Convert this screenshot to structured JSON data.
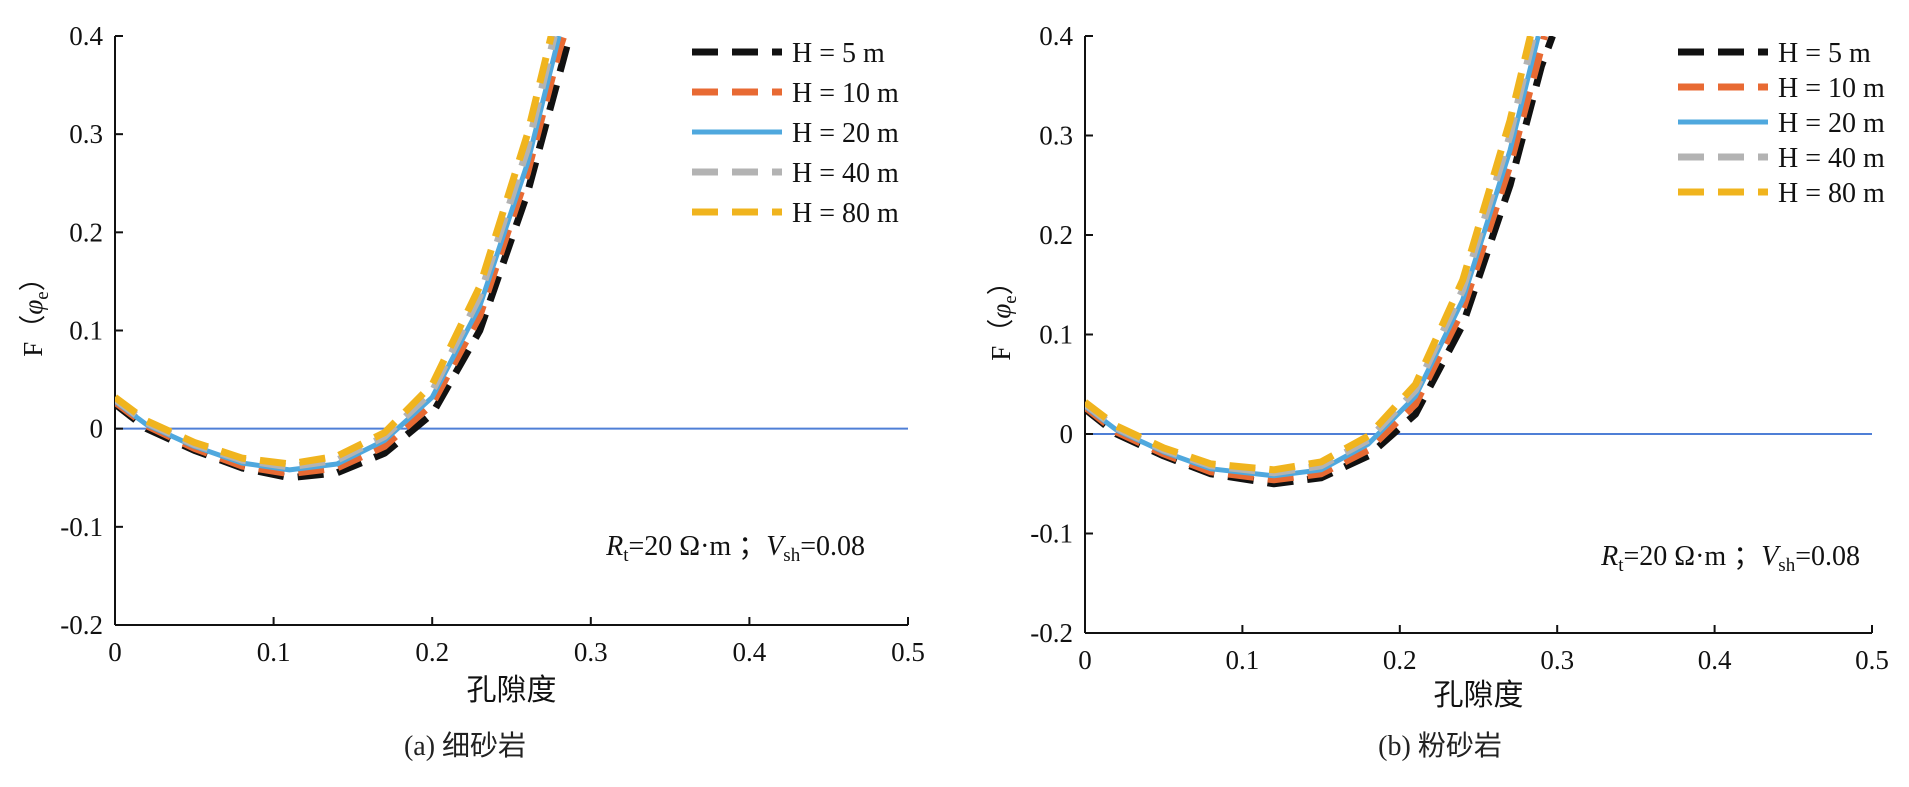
{
  "chart_data": [
    {
      "type": "line",
      "caption": "(a) 细砂岩",
      "xlabel": "孔隙度",
      "ylabel_main": "F（",
      "ylabel_sym": "φ",
      "ylabel_sub": "e",
      "ylabel_close": "）",
      "xlim": [
        0,
        0.5
      ],
      "ylim": [
        -0.2,
        0.4
      ],
      "xticks": [
        "0",
        "0.1",
        "0.2",
        "0.3",
        "0.4",
        "0.5"
      ],
      "yticks": [
        "-0.2",
        "-0.1",
        "0",
        "0.1",
        "0.2",
        "0.3",
        "0.4"
      ],
      "annotation": {
        "rt": "R",
        "rt_sub": "t",
        "rt_val": "=20 Ω·m ；",
        "vsh": "V",
        "vsh_sub": "sh",
        "vsh_val": "=0.08"
      },
      "legend_position": "top-right",
      "reference_line": {
        "y": 0,
        "color": "#4f7fd6"
      },
      "series": [
        {
          "name": "H = 5 m",
          "color": "#111111",
          "dash": true,
          "x": [
            0,
            0.02,
            0.05,
            0.08,
            0.11,
            0.14,
            0.17,
            0.2,
            0.23,
            0.26,
            0.28,
            0.285
          ],
          "y": [
            0.025,
            0.0,
            -0.022,
            -0.04,
            -0.05,
            -0.045,
            -0.025,
            0.015,
            0.1,
            0.24,
            0.36,
            0.39
          ]
        },
        {
          "name": "H = 10 m",
          "color": "#e86a33",
          "dash": true,
          "x": [
            0,
            0.02,
            0.05,
            0.08,
            0.11,
            0.14,
            0.17,
            0.2,
            0.23,
            0.26,
            0.28,
            0.283
          ],
          "y": [
            0.027,
            0.003,
            -0.02,
            -0.038,
            -0.046,
            -0.04,
            -0.018,
            0.025,
            0.115,
            0.26,
            0.385,
            0.4
          ]
        },
        {
          "name": "H = 20 m",
          "color": "#4fa8de",
          "dash": false,
          "x": [
            0,
            0.02,
            0.05,
            0.08,
            0.11,
            0.14,
            0.17,
            0.2,
            0.23,
            0.26,
            0.28
          ],
          "y": [
            0.028,
            0.004,
            -0.018,
            -0.035,
            -0.042,
            -0.036,
            -0.012,
            0.032,
            0.125,
            0.27,
            0.4
          ]
        },
        {
          "name": "H = 40 m",
          "color": "#b3b3b3",
          "dash": true,
          "x": [
            0,
            0.02,
            0.05,
            0.08,
            0.11,
            0.14,
            0.17,
            0.2,
            0.23,
            0.26,
            0.277
          ],
          "y": [
            0.03,
            0.006,
            -0.016,
            -0.032,
            -0.039,
            -0.032,
            -0.008,
            0.038,
            0.135,
            0.285,
            0.4
          ]
        },
        {
          "name": "H = 80 m",
          "color": "#f0b41e",
          "dash": true,
          "x": [
            0,
            0.02,
            0.05,
            0.08,
            0.11,
            0.14,
            0.17,
            0.2,
            0.23,
            0.26,
            0.275
          ],
          "y": [
            0.032,
            0.008,
            -0.014,
            -0.03,
            -0.036,
            -0.028,
            -0.004,
            0.045,
            0.145,
            0.3,
            0.4
          ]
        }
      ]
    },
    {
      "type": "line",
      "caption": "(b) 粉砂岩",
      "xlabel": "孔隙度",
      "ylabel_main": "F（",
      "ylabel_sym": "φ",
      "ylabel_sub": "e",
      "ylabel_close": "）",
      "xlim": [
        0,
        0.5
      ],
      "ylim": [
        -0.2,
        0.4
      ],
      "xticks": [
        "0",
        "0.1",
        "0.2",
        "0.3",
        "0.4",
        "0.5"
      ],
      "yticks": [
        "-0.2",
        "-0.1",
        "0",
        "0.1",
        "0.2",
        "0.3",
        "0.4"
      ],
      "annotation": {
        "rt": "R",
        "rt_sub": "t",
        "rt_val": "=20 Ω·m ；",
        "vsh": "V",
        "vsh_sub": "sh",
        "vsh_val": "=0.08"
      },
      "legend_position": "top-right",
      "reference_line": {
        "y": 0,
        "color": "#4f7fd6"
      },
      "series": [
        {
          "name": "H = 5 m",
          "color": "#111111",
          "dash": true,
          "x": [
            0,
            0.02,
            0.05,
            0.08,
            0.12,
            0.15,
            0.18,
            0.21,
            0.24,
            0.27,
            0.29,
            0.297
          ],
          "y": [
            0.025,
            0.0,
            -0.022,
            -0.04,
            -0.05,
            -0.044,
            -0.022,
            0.02,
            0.11,
            0.25,
            0.37,
            0.4
          ]
        },
        {
          "name": "H = 10 m",
          "color": "#e86a33",
          "dash": true,
          "x": [
            0,
            0.02,
            0.05,
            0.08,
            0.12,
            0.15,
            0.18,
            0.21,
            0.24,
            0.27,
            0.292
          ],
          "y": [
            0.027,
            0.002,
            -0.02,
            -0.038,
            -0.046,
            -0.04,
            -0.016,
            0.03,
            0.125,
            0.27,
            0.4
          ]
        },
        {
          "name": "H = 20 m",
          "color": "#4fa8de",
          "dash": false,
          "x": [
            0,
            0.02,
            0.05,
            0.08,
            0.12,
            0.15,
            0.18,
            0.21,
            0.24,
            0.27,
            0.288
          ],
          "y": [
            0.028,
            0.004,
            -0.018,
            -0.035,
            -0.042,
            -0.036,
            -0.01,
            0.038,
            0.135,
            0.285,
            0.4
          ]
        },
        {
          "name": "H = 40 m",
          "color": "#b3b3b3",
          "dash": true,
          "x": [
            0,
            0.02,
            0.05,
            0.08,
            0.12,
            0.15,
            0.18,
            0.21,
            0.24,
            0.27,
            0.285
          ],
          "y": [
            0.03,
            0.006,
            -0.016,
            -0.032,
            -0.039,
            -0.032,
            -0.006,
            0.044,
            0.145,
            0.3,
            0.4
          ]
        },
        {
          "name": "H = 80 m",
          "color": "#f0b41e",
          "dash": true,
          "x": [
            0,
            0.02,
            0.05,
            0.08,
            0.12,
            0.15,
            0.18,
            0.21,
            0.24,
            0.27,
            0.283
          ],
          "y": [
            0.032,
            0.008,
            -0.014,
            -0.03,
            -0.036,
            -0.028,
            -0.002,
            0.05,
            0.155,
            0.315,
            0.4
          ]
        }
      ]
    }
  ]
}
